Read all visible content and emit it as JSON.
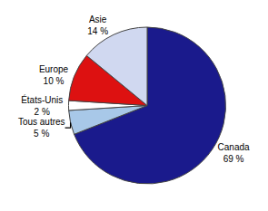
{
  "chart_data": {
    "type": "pie",
    "categories": [
      "Canada",
      "Tous autres",
      "États-Unis",
      "Europe",
      "Asie"
    ],
    "values": [
      69,
      5,
      2,
      10,
      14
    ],
    "value_labels": [
      "69 %",
      "5 %",
      "2 %",
      "10 %",
      "14 %"
    ],
    "colors": [
      "#1a1a8c",
      "#a8c8e8",
      "#ffffff",
      "#dd1111",
      "#d0d8f0"
    ]
  }
}
